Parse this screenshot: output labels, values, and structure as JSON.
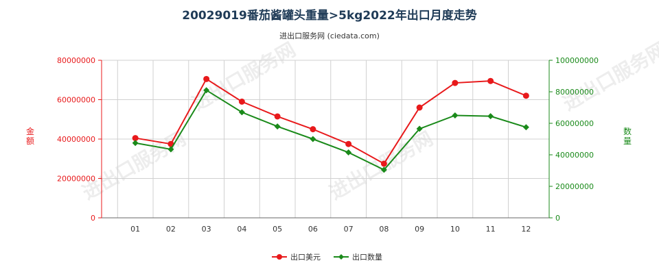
{
  "title": "20029019番茄酱罐头重量>5kg2022年出口月度走势",
  "subtitle": "进出口服务网 (ciedata.com)",
  "watermark": "进出口服务网",
  "colors": {
    "series1": "#e8191b",
    "series2": "#1a8a1a",
    "grid": "#d0d0d0",
    "axis": "#666666"
  },
  "chart_data": {
    "type": "line",
    "categories": [
      "01",
      "02",
      "03",
      "04",
      "05",
      "06",
      "07",
      "08",
      "09",
      "10",
      "11",
      "12"
    ],
    "series": [
      {
        "name": "出口美元",
        "axis": "left",
        "color": "#e8191b",
        "values": [
          40500000,
          37500000,
          70500000,
          59000000,
          51500000,
          45000000,
          37500000,
          27500000,
          56000000,
          68500000,
          69500000,
          62000000
        ]
      },
      {
        "name": "出口数量",
        "axis": "right",
        "color": "#1a8a1a",
        "values": [
          47500000,
          43500000,
          81000000,
          67000000,
          58000000,
          50000000,
          41500000,
          30500000,
          56500000,
          65000000,
          64500000,
          57500000
        ]
      }
    ],
    "y_left": {
      "label": "金额",
      "min": 0,
      "max": 80000000,
      "ticks": [
        "0",
        "20000000",
        "40000000",
        "60000000",
        "80000000"
      ]
    },
    "y_right": {
      "label": "数量",
      "min": 0,
      "max": 100000000,
      "ticks": [
        "0",
        "20000000",
        "40000000",
        "60000000",
        "80000000",
        "100000000"
      ]
    },
    "grid": true,
    "legend_position": "bottom-center"
  }
}
